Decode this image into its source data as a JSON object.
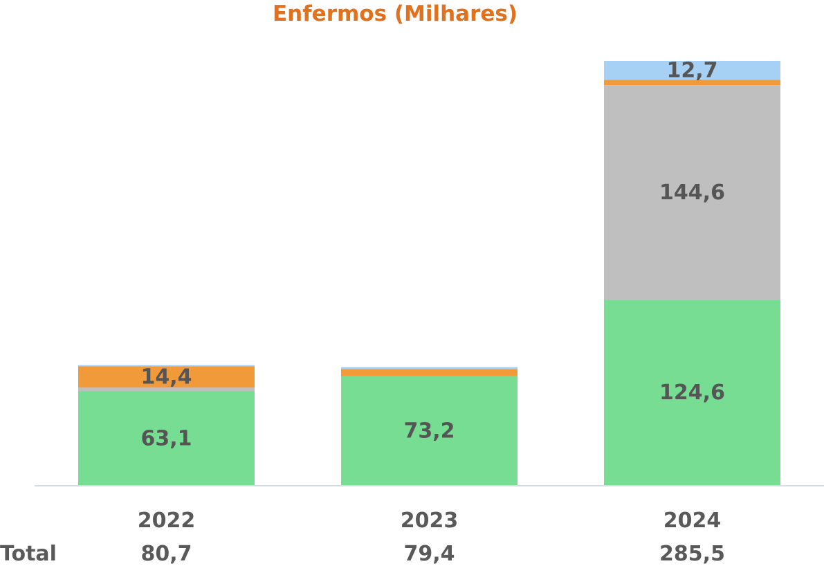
{
  "chart_data": {
    "type": "bar",
    "stacked": true,
    "title": "Enfermos (Milhares)",
    "categories": [
      "2022",
      "2023",
      "2024"
    ],
    "series": [
      {
        "values": [
          63.1,
          73.2,
          124.6
        ],
        "labels": [
          "63,1",
          "73,2",
          "124,6"
        ],
        "color": "#77DD93"
      },
      {
        "values": [
          2.5,
          0.0,
          144.6
        ],
        "labels": [
          "",
          "",
          "144,6"
        ],
        "color": "#BFBFBF"
      },
      {
        "values": [
          14.4,
          4.9,
          3.6
        ],
        "labels": [
          "14,4",
          "",
          ""
        ],
        "color": "#F09A3A"
      },
      {
        "values": [
          0.7,
          1.3,
          12.7
        ],
        "labels": [
          "",
          "",
          "12,7"
        ],
        "color": "#A6D1F5"
      }
    ],
    "totals_label": "Total",
    "totals": [
      "80,7",
      "79,4",
      "285,5"
    ],
    "ylim": [
      0,
      290
    ],
    "grid": false,
    "legend": "none"
  },
  "colors": {
    "title": "#E2711D",
    "axis": "#D6DCE5",
    "label_text": "#555555"
  }
}
